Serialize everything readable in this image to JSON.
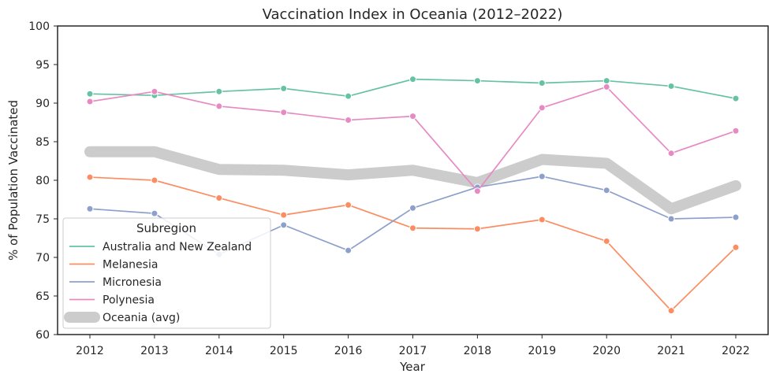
{
  "chart_data": {
    "type": "line",
    "title": "Vaccination Index in Oceania (2012–2022)",
    "xlabel": "Year",
    "ylabel": "% of Population Vaccinated",
    "ylim": [
      60,
      100
    ],
    "yticks": [
      60,
      65,
      70,
      75,
      80,
      85,
      90,
      95,
      100
    ],
    "x": [
      2012,
      2013,
      2014,
      2015,
      2016,
      2017,
      2018,
      2019,
      2020,
      2021,
      2022
    ],
    "grid": false,
    "legend": {
      "title": "Subregion",
      "placement": "bottom-left"
    },
    "series": [
      {
        "name": "Australia and New Zealand",
        "color": "#66c2a5",
        "values": [
          91.2,
          91.0,
          91.5,
          91.9,
          90.9,
          93.1,
          92.9,
          92.6,
          92.9,
          92.2,
          90.6
        ]
      },
      {
        "name": "Melanesia",
        "color": "#fc8d62",
        "values": [
          80.4,
          80.0,
          77.7,
          75.5,
          76.8,
          73.8,
          73.7,
          74.9,
          72.1,
          63.1,
          71.3
        ]
      },
      {
        "name": "Micronesia",
        "color": "#8da0cb",
        "values": [
          76.3,
          75.7,
          70.4,
          74.2,
          70.9,
          76.4,
          79.1,
          80.5,
          78.7,
          75.0,
          75.2
        ]
      },
      {
        "name": "Polynesia",
        "color": "#e78ac3",
        "values": [
          90.2,
          91.5,
          89.6,
          88.8,
          87.8,
          88.3,
          78.6,
          89.4,
          92.1,
          83.5,
          86.4
        ]
      },
      {
        "name": "Oceania (avg)",
        "color": "#cccccc",
        "style": "thick",
        "values": [
          83.7,
          83.7,
          81.4,
          81.3,
          80.7,
          81.3,
          79.7,
          82.7,
          82.2,
          76.3,
          79.3
        ]
      }
    ]
  }
}
